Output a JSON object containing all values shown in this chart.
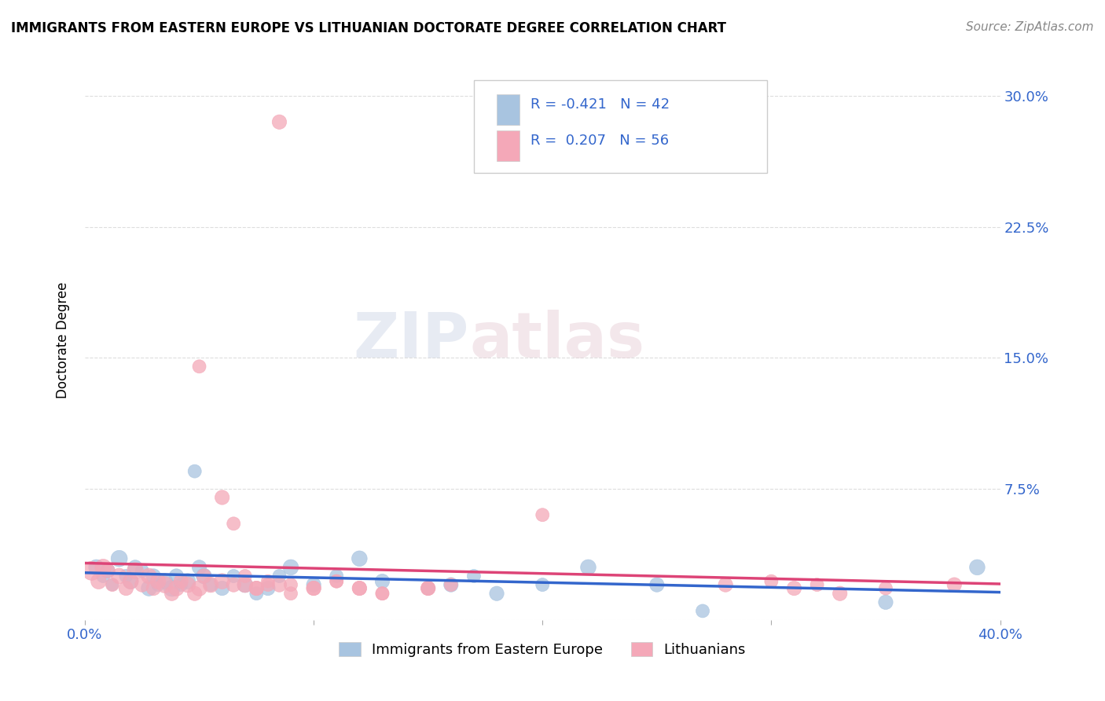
{
  "title": "IMMIGRANTS FROM EASTERN EUROPE VS LITHUANIAN DOCTORATE DEGREE CORRELATION CHART",
  "source": "Source: ZipAtlas.com",
  "ylabel": "Doctorate Degree",
  "xlim": [
    0.0,
    0.4
  ],
  "ylim": [
    0.0,
    0.32
  ],
  "yticks": [
    0.0,
    0.075,
    0.15,
    0.225,
    0.3
  ],
  "ytick_labels": [
    "",
    "7.5%",
    "15.0%",
    "22.5%",
    "30.0%"
  ],
  "xticks": [
    0.0,
    0.1,
    0.2,
    0.3,
    0.4
  ],
  "xtick_labels": [
    "0.0%",
    "",
    "",
    "",
    "40.0%"
  ],
  "background_color": "#ffffff",
  "grid_color": "#dddddd",
  "watermark_zip": "ZIP",
  "watermark_atlas": "atlas",
  "blue_color": "#a8c4e0",
  "pink_color": "#f4a8b8",
  "blue_line_color": "#3366cc",
  "pink_line_color": "#dd4477",
  "legend_R_blue": "-0.421",
  "legend_N_blue": "42",
  "legend_R_pink": "0.207",
  "legend_N_pink": "56",
  "blue_scatter_x": [
    0.005,
    0.008,
    0.01,
    0.012,
    0.015,
    0.018,
    0.02,
    0.022,
    0.025,
    0.028,
    0.03,
    0.032,
    0.035,
    0.038,
    0.04,
    0.042,
    0.045,
    0.048,
    0.05,
    0.052,
    0.055,
    0.06,
    0.065,
    0.07,
    0.075,
    0.08,
    0.085,
    0.09,
    0.1,
    0.11,
    0.12,
    0.13,
    0.15,
    0.16,
    0.17,
    0.18,
    0.2,
    0.22,
    0.25,
    0.27,
    0.35,
    0.39
  ],
  "blue_scatter_y": [
    0.03,
    0.025,
    0.028,
    0.02,
    0.035,
    0.025,
    0.022,
    0.03,
    0.028,
    0.018,
    0.025,
    0.02,
    0.022,
    0.018,
    0.025,
    0.02,
    0.022,
    0.085,
    0.03,
    0.025,
    0.02,
    0.018,
    0.025,
    0.02,
    0.015,
    0.018,
    0.025,
    0.03,
    0.02,
    0.025,
    0.035,
    0.022,
    0.018,
    0.02,
    0.025,
    0.015,
    0.02,
    0.03,
    0.02,
    0.005,
    0.01,
    0.03
  ],
  "blue_scatter_size": [
    80,
    60,
    70,
    50,
    90,
    60,
    80,
    70,
    60,
    80,
    70,
    60,
    80,
    90,
    70,
    60,
    80,
    60,
    70,
    80,
    60,
    70,
    60,
    80,
    60,
    70,
    60,
    80,
    70,
    60,
    80,
    70,
    60,
    70,
    60,
    70,
    60,
    80,
    70,
    60,
    70,
    80
  ],
  "pink_scatter_x": [
    0.003,
    0.006,
    0.008,
    0.01,
    0.012,
    0.015,
    0.018,
    0.02,
    0.022,
    0.025,
    0.028,
    0.03,
    0.032,
    0.035,
    0.038,
    0.04,
    0.042,
    0.045,
    0.048,
    0.05,
    0.052,
    0.055,
    0.06,
    0.065,
    0.07,
    0.075,
    0.08,
    0.085,
    0.09,
    0.1,
    0.11,
    0.12,
    0.13,
    0.15,
    0.16,
    0.05,
    0.06,
    0.065,
    0.07,
    0.075,
    0.08,
    0.085,
    0.09,
    0.1,
    0.11,
    0.12,
    0.13,
    0.15,
    0.2,
    0.28,
    0.3,
    0.31,
    0.32,
    0.33,
    0.35,
    0.38
  ],
  "pink_scatter_y": [
    0.028,
    0.022,
    0.03,
    0.028,
    0.02,
    0.025,
    0.018,
    0.022,
    0.028,
    0.02,
    0.025,
    0.018,
    0.022,
    0.02,
    0.015,
    0.018,
    0.022,
    0.02,
    0.015,
    0.018,
    0.025,
    0.02,
    0.07,
    0.055,
    0.02,
    0.018,
    0.022,
    0.02,
    0.015,
    0.018,
    0.022,
    0.018,
    0.015,
    0.018,
    0.02,
    0.145,
    0.022,
    0.02,
    0.025,
    0.018,
    0.02,
    0.285,
    0.02,
    0.018,
    0.022,
    0.018,
    0.015,
    0.018,
    0.06,
    0.02,
    0.022,
    0.018,
    0.02,
    0.015,
    0.018,
    0.02
  ],
  "pink_scatter_size": [
    120,
    80,
    90,
    70,
    60,
    80,
    70,
    80,
    90,
    70,
    80,
    70,
    80,
    90,
    70,
    80,
    70,
    80,
    70,
    80,
    70,
    80,
    70,
    60,
    80,
    70,
    60,
    70,
    60,
    70,
    60,
    70,
    60,
    70,
    60,
    60,
    80,
    70,
    60,
    70,
    60,
    70,
    60,
    70,
    60,
    70,
    60,
    70,
    60,
    70,
    60,
    70,
    60,
    70,
    60,
    70
  ]
}
